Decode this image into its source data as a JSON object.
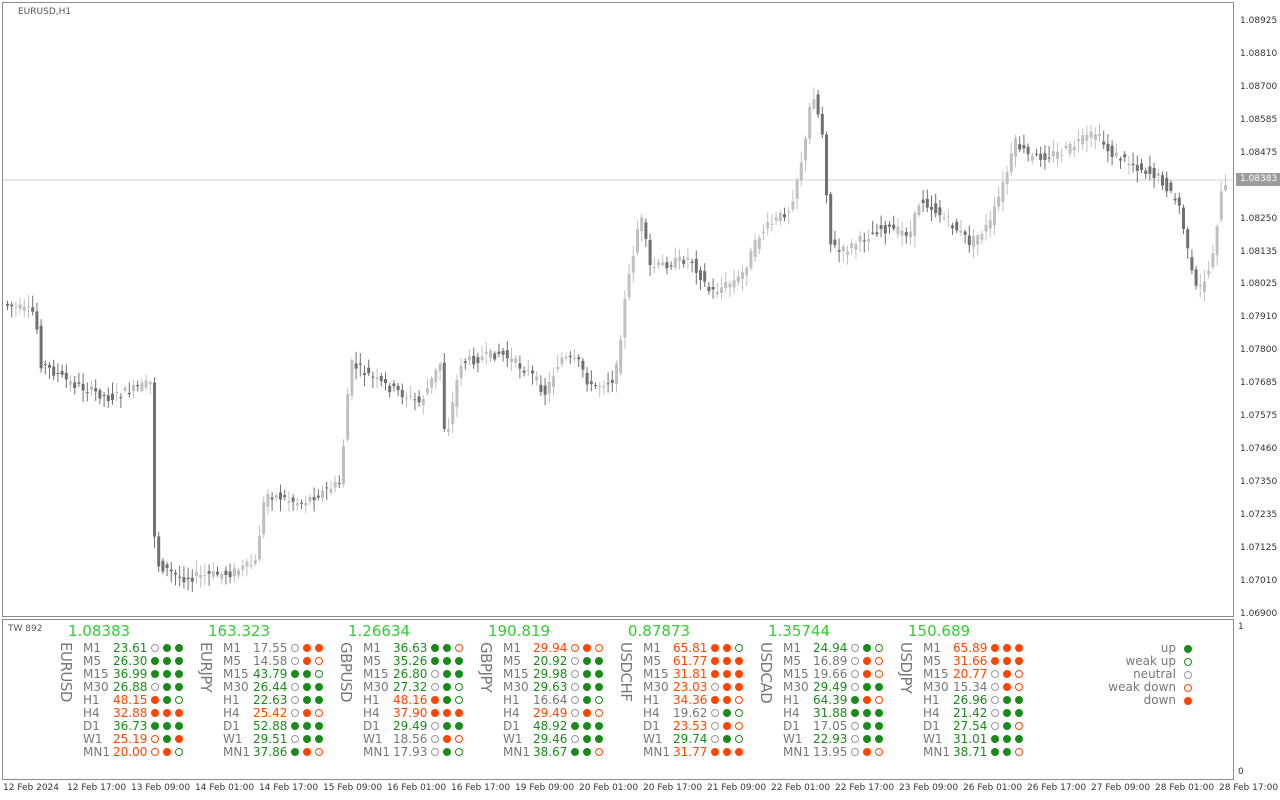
{
  "chart": {
    "title": "EURUSD,H1",
    "current_price": "1.08383",
    "price_axis": [
      "1.08925",
      "1.08810",
      "1.08700",
      "1.08585",
      "1.08475",
      "1.08250",
      "1.08135",
      "1.08025",
      "1.07910",
      "1.07800",
      "1.07685",
      "1.07575",
      "1.07460",
      "1.07350",
      "1.07235",
      "1.07125",
      "1.07010",
      "1.06900"
    ],
    "time_axis": [
      "12 Feb 2024",
      "12 Feb 17:00",
      "13 Feb 09:00",
      "14 Feb 01:00",
      "14 Feb 17:00",
      "15 Feb 09:00",
      "16 Feb 01:00",
      "16 Feb 17:00",
      "19 Feb 09:00",
      "20 Feb 01:00",
      "20 Feb 17:00",
      "21 Feb 09:00",
      "22 Feb 01:00",
      "22 Feb 17:00",
      "23 Feb 09:00",
      "26 Feb 01:00",
      "26 Feb 17:00",
      "27 Feb 09:00",
      "28 Feb 01:00",
      "28 Feb 17:00"
    ],
    "colors": {
      "bull": "#c0c0c0",
      "bear": "#707070",
      "grid": "#d0d0d0"
    }
  },
  "indicator": {
    "title": "TW 892",
    "axis_top": "1",
    "axis_bottom": "0",
    "colors": {
      "up": "#1a8a1a",
      "down": "#ff4500",
      "neutral": "#999999",
      "weak_up_border": "#1a8a1a",
      "weak_down_border": "#ff4500"
    },
    "pairs": [
      {
        "name": "EURUSD",
        "price": "1.08383",
        "rows": [
          {
            "tf": "M1",
            "value": "23.61",
            "color": "#1a8a1a",
            "dots": [
              "neutral",
              "up",
              "up"
            ]
          },
          {
            "tf": "M5",
            "value": "26.30",
            "color": "#1a8a1a",
            "dots": [
              "up",
              "up",
              "up"
            ]
          },
          {
            "tf": "M15",
            "value": "36.99",
            "color": "#1a8a1a",
            "dots": [
              "up",
              "up",
              "up"
            ]
          },
          {
            "tf": "M30",
            "value": "26.88",
            "color": "#1a8a1a",
            "dots": [
              "neutral",
              "up",
              "up"
            ]
          },
          {
            "tf": "H1",
            "value": "48.15",
            "color": "#ff4500",
            "dots": [
              "down",
              "up",
              "weak_up"
            ]
          },
          {
            "tf": "H4",
            "value": "32.88",
            "color": "#ff4500",
            "dots": [
              "down",
              "down",
              "down"
            ]
          },
          {
            "tf": "D1",
            "value": "36.73",
            "color": "#1a8a1a",
            "dots": [
              "up",
              "up",
              "up"
            ]
          },
          {
            "tf": "W1",
            "value": "25.19",
            "color": "#ff4500",
            "dots": [
              "weak_down",
              "up",
              "down"
            ]
          },
          {
            "tf": "MN1",
            "value": "20.00",
            "color": "#ff4500",
            "dots": [
              "weak_down",
              "down",
              "weak_up"
            ]
          }
        ]
      },
      {
        "name": "EURJPY",
        "price": "163.323",
        "rows": [
          {
            "tf": "M1",
            "value": "17.55",
            "color": "#777777",
            "dots": [
              "neutral",
              "down",
              "down"
            ]
          },
          {
            "tf": "M5",
            "value": "14.58",
            "color": "#777777",
            "dots": [
              "neutral",
              "down",
              "weak_down"
            ]
          },
          {
            "tf": "M15",
            "value": "43.79",
            "color": "#1a8a1a",
            "dots": [
              "up",
              "up",
              "weak_up"
            ]
          },
          {
            "tf": "M30",
            "value": "26.44",
            "color": "#1a8a1a",
            "dots": [
              "neutral",
              "up",
              "up"
            ]
          },
          {
            "tf": "H1",
            "value": "22.63",
            "color": "#1a8a1a",
            "dots": [
              "neutral",
              "up",
              "up"
            ]
          },
          {
            "tf": "H4",
            "value": "25.42",
            "color": "#ff4500",
            "dots": [
              "neutral",
              "down",
              "weak_down"
            ]
          },
          {
            "tf": "D1",
            "value": "52.88",
            "color": "#1a8a1a",
            "dots": [
              "up",
              "up",
              "up"
            ]
          },
          {
            "tf": "W1",
            "value": "29.51",
            "color": "#1a8a1a",
            "dots": [
              "neutral",
              "up",
              "up"
            ]
          },
          {
            "tf": "MN1",
            "value": "37.86",
            "color": "#1a8a1a",
            "dots": [
              "up",
              "down",
              "weak_down"
            ]
          }
        ]
      },
      {
        "name": "GBPUSD",
        "price": "1.26634",
        "rows": [
          {
            "tf": "M1",
            "value": "36.63",
            "color": "#1a8a1a",
            "dots": [
              "up",
              "up",
              "weak_down"
            ]
          },
          {
            "tf": "M5",
            "value": "35.26",
            "color": "#1a8a1a",
            "dots": [
              "up",
              "up",
              "up"
            ]
          },
          {
            "tf": "M15",
            "value": "26.80",
            "color": "#1a8a1a",
            "dots": [
              "neutral",
              "up",
              "up"
            ]
          },
          {
            "tf": "M30",
            "value": "27.32",
            "color": "#1a8a1a",
            "dots": [
              "neutral",
              "up",
              "weak_up"
            ]
          },
          {
            "tf": "H1",
            "value": "48.16",
            "color": "#ff4500",
            "dots": [
              "down",
              "up",
              "weak_up"
            ]
          },
          {
            "tf": "H4",
            "value": "37.90",
            "color": "#ff4500",
            "dots": [
              "down",
              "down",
              "down"
            ]
          },
          {
            "tf": "D1",
            "value": "29.49",
            "color": "#1a8a1a",
            "dots": [
              "neutral",
              "up",
              "up"
            ]
          },
          {
            "tf": "W1",
            "value": "18.56",
            "color": "#777777",
            "dots": [
              "neutral",
              "down",
              "weak_down"
            ]
          },
          {
            "tf": "MN1",
            "value": "17.93",
            "color": "#777777",
            "dots": [
              "neutral",
              "up",
              "weak_up"
            ]
          }
        ]
      },
      {
        "name": "GBPJPY",
        "price": "190.819",
        "rows": [
          {
            "tf": "M1",
            "value": "29.94",
            "color": "#ff4500",
            "dots": [
              "weak_down",
              "down",
              "weak_down"
            ]
          },
          {
            "tf": "M5",
            "value": "20.92",
            "color": "#1a8a1a",
            "dots": [
              "neutral",
              "up",
              "up"
            ]
          },
          {
            "tf": "M15",
            "value": "29.98",
            "color": "#1a8a1a",
            "dots": [
              "neutral",
              "up",
              "up"
            ]
          },
          {
            "tf": "M30",
            "value": "29.63",
            "color": "#1a8a1a",
            "dots": [
              "neutral",
              "up",
              "up"
            ]
          },
          {
            "tf": "H1",
            "value": "16.64",
            "color": "#777777",
            "dots": [
              "neutral",
              "up",
              "weak_up"
            ]
          },
          {
            "tf": "H4",
            "value": "29.49",
            "color": "#ff4500",
            "dots": [
              "neutral",
              "down",
              "weak_down"
            ]
          },
          {
            "tf": "D1",
            "value": "48.92",
            "color": "#1a8a1a",
            "dots": [
              "up",
              "up",
              "up"
            ]
          },
          {
            "tf": "W1",
            "value": "29.46",
            "color": "#1a8a1a",
            "dots": [
              "neutral",
              "up",
              "up"
            ]
          },
          {
            "tf": "MN1",
            "value": "38.67",
            "color": "#1a8a1a",
            "dots": [
              "up",
              "up",
              "weak_down"
            ]
          }
        ]
      },
      {
        "name": "USDCHF",
        "price": "0.87873",
        "rows": [
          {
            "tf": "M1",
            "value": "65.81",
            "color": "#ff4500",
            "dots": [
              "down",
              "down",
              "weak_up"
            ]
          },
          {
            "tf": "M5",
            "value": "61.77",
            "color": "#ff4500",
            "dots": [
              "down",
              "down",
              "down"
            ]
          },
          {
            "tf": "M15",
            "value": "31.81",
            "color": "#ff4500",
            "dots": [
              "down",
              "down",
              "down"
            ]
          },
          {
            "tf": "M30",
            "value": "23.03",
            "color": "#ff4500",
            "dots": [
              "neutral",
              "down",
              "down"
            ]
          },
          {
            "tf": "H1",
            "value": "34.36",
            "color": "#ff4500",
            "dots": [
              "down",
              "down",
              "weak_down"
            ]
          },
          {
            "tf": "H4",
            "value": "19.62",
            "color": "#777777",
            "dots": [
              "neutral",
              "up",
              "weak_up"
            ]
          },
          {
            "tf": "D1",
            "value": "23.53",
            "color": "#ff4500",
            "dots": [
              "neutral",
              "down",
              "weak_down"
            ]
          },
          {
            "tf": "W1",
            "value": "29.74",
            "color": "#1a8a1a",
            "dots": [
              "neutral",
              "up",
              "weak_up"
            ]
          },
          {
            "tf": "MN1",
            "value": "31.77",
            "color": "#ff4500",
            "dots": [
              "down",
              "down",
              "down"
            ]
          }
        ]
      },
      {
        "name": "USDCAD",
        "price": "1.35744",
        "rows": [
          {
            "tf": "M1",
            "value": "24.94",
            "color": "#1a8a1a",
            "dots": [
              "neutral",
              "up",
              "weak_up"
            ]
          },
          {
            "tf": "M5",
            "value": "16.89",
            "color": "#777777",
            "dots": [
              "neutral",
              "down",
              "weak_down"
            ]
          },
          {
            "tf": "M15",
            "value": "19.66",
            "color": "#777777",
            "dots": [
              "neutral",
              "down",
              "weak_down"
            ]
          },
          {
            "tf": "M30",
            "value": "29.49",
            "color": "#1a8a1a",
            "dots": [
              "neutral",
              "up",
              "up"
            ]
          },
          {
            "tf": "H1",
            "value": "64.39",
            "color": "#1a8a1a",
            "dots": [
              "up",
              "down",
              "weak_down"
            ]
          },
          {
            "tf": "H4",
            "value": "31.88",
            "color": "#1a8a1a",
            "dots": [
              "up",
              "up",
              "up"
            ]
          },
          {
            "tf": "D1",
            "value": "17.05",
            "color": "#777777",
            "dots": [
              "neutral",
              "up",
              "up"
            ]
          },
          {
            "tf": "W1",
            "value": "22.93",
            "color": "#1a8a1a",
            "dots": [
              "neutral",
              "up",
              "up"
            ]
          },
          {
            "tf": "MN1",
            "value": "13.95",
            "color": "#777777",
            "dots": [
              "neutral",
              "down",
              "weak_down"
            ]
          }
        ]
      },
      {
        "name": "USDJPY",
        "price": "150.689",
        "rows": [
          {
            "tf": "M1",
            "value": "65.89",
            "color": "#ff4500",
            "dots": [
              "down",
              "down",
              "down"
            ]
          },
          {
            "tf": "M5",
            "value": "31.66",
            "color": "#ff4500",
            "dots": [
              "down",
              "down",
              "down"
            ]
          },
          {
            "tf": "M15",
            "value": "20.77",
            "color": "#ff4500",
            "dots": [
              "neutral",
              "down",
              "weak_down"
            ]
          },
          {
            "tf": "M30",
            "value": "15.34",
            "color": "#777777",
            "dots": [
              "neutral",
              "down",
              "weak_down"
            ]
          },
          {
            "tf": "H1",
            "value": "26.96",
            "color": "#1a8a1a",
            "dots": [
              "neutral",
              "up",
              "up"
            ]
          },
          {
            "tf": "H4",
            "value": "21.42",
            "color": "#1a8a1a",
            "dots": [
              "neutral",
              "up",
              "up"
            ]
          },
          {
            "tf": "D1",
            "value": "27.54",
            "color": "#1a8a1a",
            "dots": [
              "neutral",
              "up",
              "weak_down"
            ]
          },
          {
            "tf": "W1",
            "value": "31.01",
            "color": "#1a8a1a",
            "dots": [
              "up",
              "up",
              "up"
            ]
          },
          {
            "tf": "MN1",
            "value": "38.71",
            "color": "#1a8a1a",
            "dots": [
              "up",
              "up",
              "weak_down"
            ]
          }
        ]
      }
    ],
    "legend": [
      {
        "label": "up",
        "kind": "up"
      },
      {
        "label": "weak up",
        "kind": "weak_up"
      },
      {
        "label": "neutral",
        "kind": "neutral"
      },
      {
        "label": "weak down",
        "kind": "weak_down"
      },
      {
        "label": "down",
        "kind": "down"
      }
    ]
  }
}
